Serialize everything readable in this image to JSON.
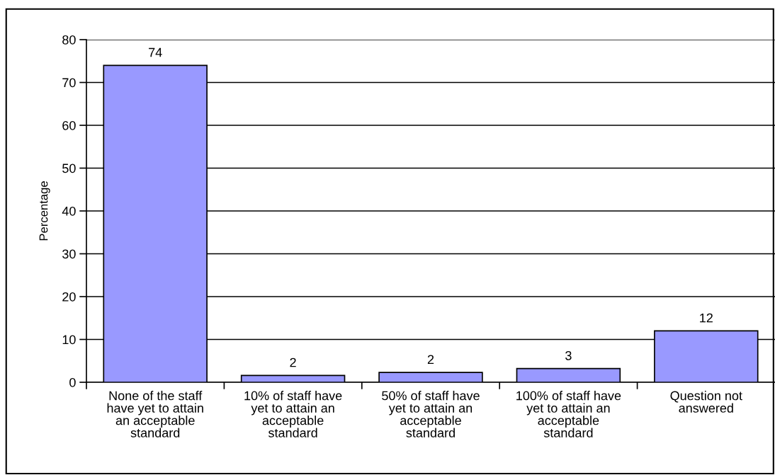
{
  "chart_data": {
    "type": "bar",
    "ylabel": "Percentage",
    "categories": [
      "None of the staff have yet to attain an acceptable standard",
      "10% of staff have yet to attain an acceptable standard",
      "50% of staff have yet to attain an acceptable standard",
      "100% of staff have yet to attain an acceptable standard",
      "Question not answered"
    ],
    "values": [
      74,
      1.6,
      2.3,
      3.2,
      12
    ],
    "value_labels": [
      "74",
      "2",
      "2",
      "3",
      "12"
    ],
    "color": "#9999ff",
    "ylim": [
      0,
      80
    ],
    "yticks": [
      0,
      10,
      20,
      30,
      40,
      50,
      60,
      70,
      80
    ],
    "grid": "y",
    "legend": false
  }
}
